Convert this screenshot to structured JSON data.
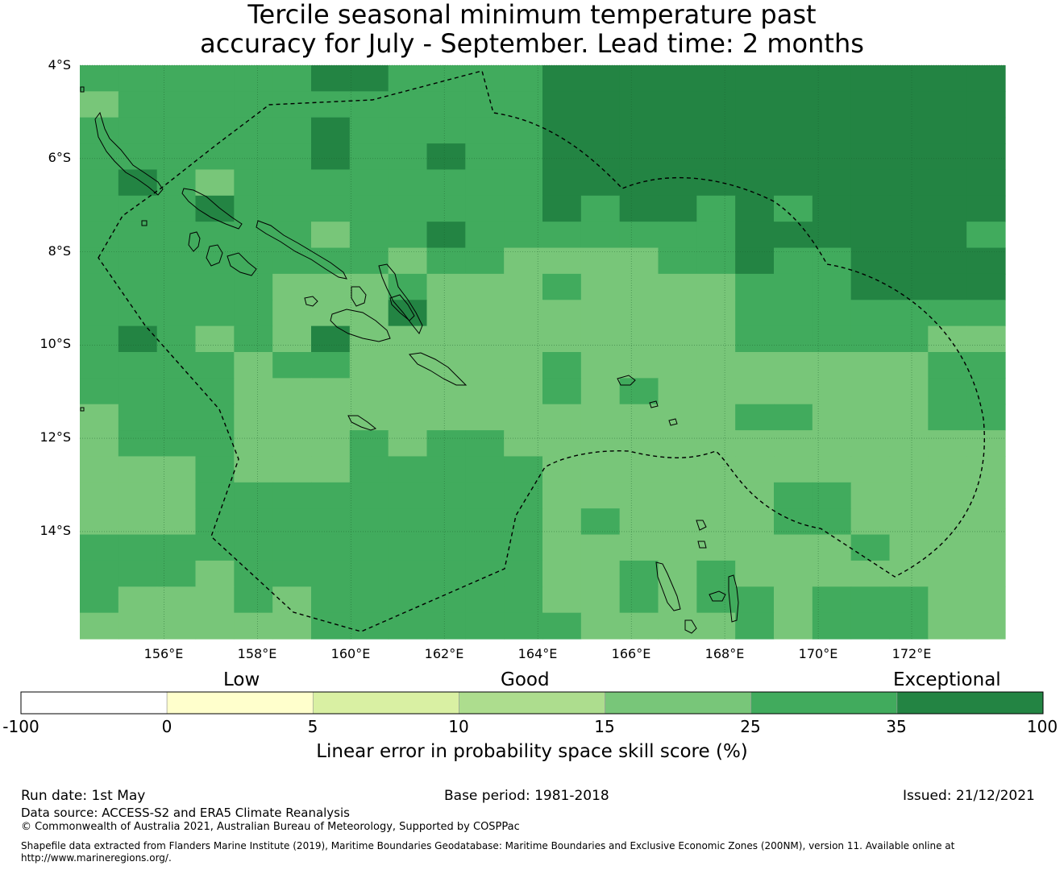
{
  "title": {
    "line1": "Tercile seasonal minimum temperature past",
    "line2": "accuracy for July - September. Lead time: 2 months"
  },
  "map": {
    "lat_labels": [
      "4°S",
      "6°S",
      "8°S",
      "10°S",
      "12°S",
      "14°S"
    ],
    "lon_labels": [
      "156°E",
      "158°E",
      "160°E",
      "162°E",
      "164°E",
      "166°E",
      "168°E",
      "170°E",
      "172°E"
    ],
    "lat_range": [
      -4,
      -16.3
    ],
    "lon_range": [
      154.2,
      174.0
    ],
    "skill_colors": {
      "15-25": "#78c679",
      "25-35": "#41ab5d",
      "35-100": "#238443"
    }
  },
  "colorbar": {
    "category_low": "Low",
    "category_good": "Good",
    "category_exceptional": "Exceptional",
    "ticks": [
      "-100",
      "0",
      "5",
      "10",
      "15",
      "25",
      "35",
      "100"
    ],
    "colors": [
      "#ffffff",
      "#ffffcc",
      "#d9f0a3",
      "#addd8e",
      "#78c679",
      "#41ab5d",
      "#238443"
    ],
    "label": "Linear error in probability space skill score (%)"
  },
  "footer": {
    "run_date": "Run date: 1st May",
    "base_period": "Base period: 1981-2018",
    "issued": "Issued: 21/12/2021",
    "data_source": "Data source: ACCESS-S2 and ERA5 Climate Reanalysis",
    "copyright": "© Commonwealth of Australia 2021, Australian Bureau of Meteorology, Supported by COSPPac",
    "shapefile_line1": "Shapefile data extracted from Flanders Marine Institute (2019), Maritime Boundaries Geodatabase: Maritime Boundaries and Exclusive Economic Zones (200NM), version 11. Available online at",
    "shapefile_line2": "http://www.marineregions.org/."
  }
}
